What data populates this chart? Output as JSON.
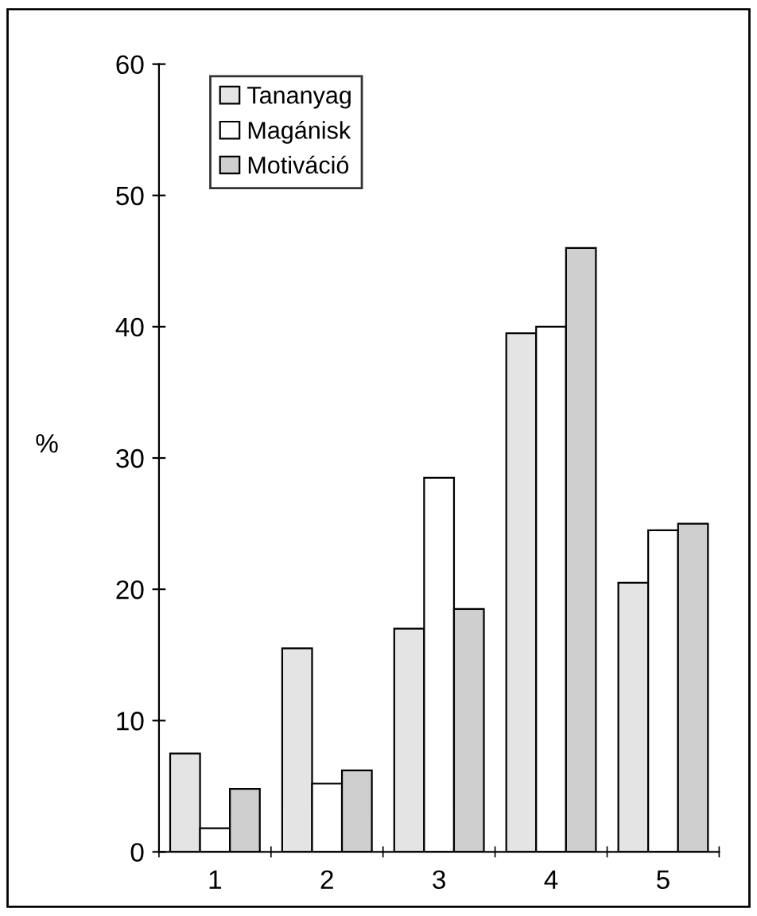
{
  "chart_data": {
    "type": "bar",
    "ylabel": "%",
    "categories": [
      "1",
      "2",
      "3",
      "4",
      "5"
    ],
    "series": [
      {
        "name": "Tananyag",
        "color": "#e4e4e4",
        "values": [
          7.5,
          15.5,
          17,
          39.5,
          20.5
        ]
      },
      {
        "name": "Magánisk",
        "color": "#ffffff",
        "values": [
          1.8,
          5.2,
          28.5,
          40,
          24.5
        ]
      },
      {
        "name": "Motiváció",
        "color": "#cfcfcf",
        "values": [
          4.8,
          6.2,
          18.5,
          46,
          25
        ]
      }
    ],
    "ylim": [
      0,
      60
    ],
    "yticks": [
      0,
      10,
      20,
      30,
      40,
      50,
      60
    ],
    "grid": false,
    "legend": "top left"
  }
}
